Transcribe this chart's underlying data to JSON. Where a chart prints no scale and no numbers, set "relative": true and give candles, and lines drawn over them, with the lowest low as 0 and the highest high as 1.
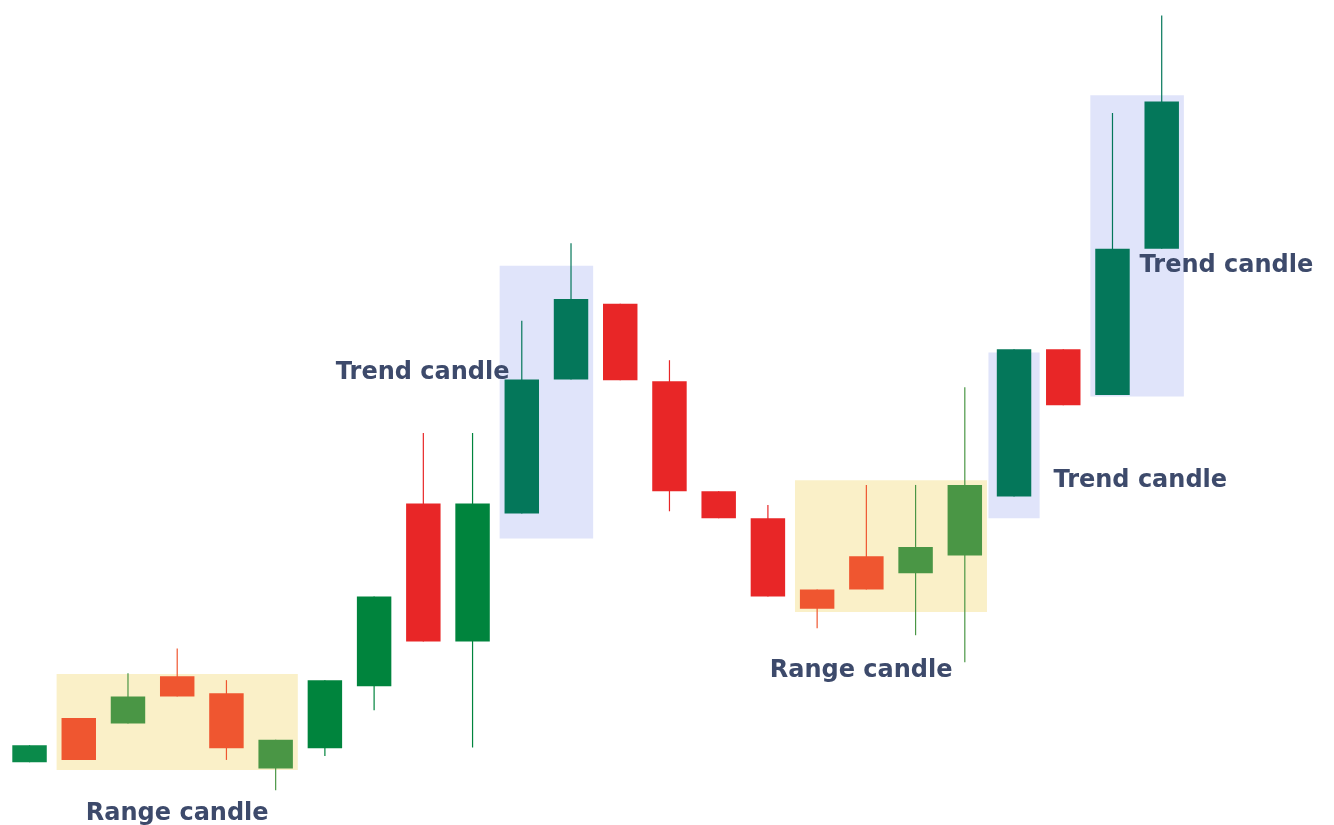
{
  "chart_data": {
    "type": "candlestick",
    "relative": true,
    "categories": [
      null,
      null,
      null,
      null,
      null,
      null,
      null,
      null,
      null,
      null,
      null,
      null,
      null,
      null,
      null,
      null,
      null,
      null,
      null,
      null,
      null,
      null,
      null,
      null
    ],
    "ohlc": [
      [
        0.036,
        0.058,
        0.036,
        0.058
      ],
      [
        0.093,
        0.093,
        0.039,
        0.039
      ],
      [
        0.086,
        0.151,
        0.086,
        0.121
      ],
      [
        0.147,
        0.183,
        0.121,
        0.121
      ],
      [
        0.125,
        0.142,
        0.039,
        0.054
      ],
      [
        0.028,
        0.065,
        0,
        0.065
      ],
      [
        0.054,
        0.142,
        0.044,
        0.142
      ],
      [
        0.134,
        0.25,
        0.103,
        0.25
      ],
      [
        0.37,
        0.461,
        0.192,
        0.192
      ],
      [
        0.192,
        0.461,
        0.055,
        0.37
      ],
      [
        0.357,
        0.606,
        0.357,
        0.53
      ],
      [
        0.53,
        0.706,
        0.53,
        0.634
      ],
      [
        0.628,
        0.628,
        0.529,
        0.529
      ],
      [
        0.528,
        0.555,
        0.36,
        0.386
      ],
      [
        0.386,
        0.386,
        0.351,
        0.351
      ],
      [
        0.351,
        0.368,
        0.25,
        0.25
      ],
      [
        0.259,
        0.259,
        0.209,
        0.234
      ],
      [
        0.302,
        0.394,
        0.259,
        0.259
      ],
      [
        0.28,
        0.394,
        0.2,
        0.314
      ],
      [
        0.303,
        0.52,
        0.165,
        0.394
      ],
      [
        0.379,
        0.569,
        0.379,
        0.569
      ],
      [
        0.569,
        0.569,
        0.497,
        0.497
      ],
      [
        0.51,
        0.874,
        0.51,
        0.699
      ],
      [
        0.699,
        1,
        0.699,
        0.889
      ]
    ],
    "colors": [
      "#0a8a4a",
      "#ef5630",
      "#4a9645",
      "#ef5630",
      "#ef5630",
      "#4a9645",
      "#00843d",
      "#00843d",
      "#e82627",
      "#00843d",
      "#04775a",
      "#04775a",
      "#e82627",
      "#e82627",
      "#e82627",
      "#e82627",
      "#ef5630",
      "#ef5630",
      "#4a9645",
      "#4a9645",
      "#04775a",
      "#e82627",
      "#04775a",
      "#04775a"
    ],
    "bands": [
      {
        "axis": "y",
        "from": 0.026,
        "to": 0.15,
        "color": "#faf0c8"
      },
      {
        "axis": "y",
        "from": 0.325,
        "to": 0.677,
        "color": "#e0e4fa"
      },
      {
        "axis": "y",
        "from": 0.23,
        "to": 0.4,
        "color": "#faf0c8"
      },
      {
        "axis": "y",
        "from": 0.351,
        "to": 0.565,
        "color": "#e0e4fa"
      },
      {
        "axis": "y",
        "from": 0.508,
        "to": 0.897,
        "color": "#e0e4fa"
      }
    ],
    "annotations": [
      "Range candle",
      "Trend candle",
      "Range candle",
      "Trend candle",
      "Trend candle"
    ]
  }
}
